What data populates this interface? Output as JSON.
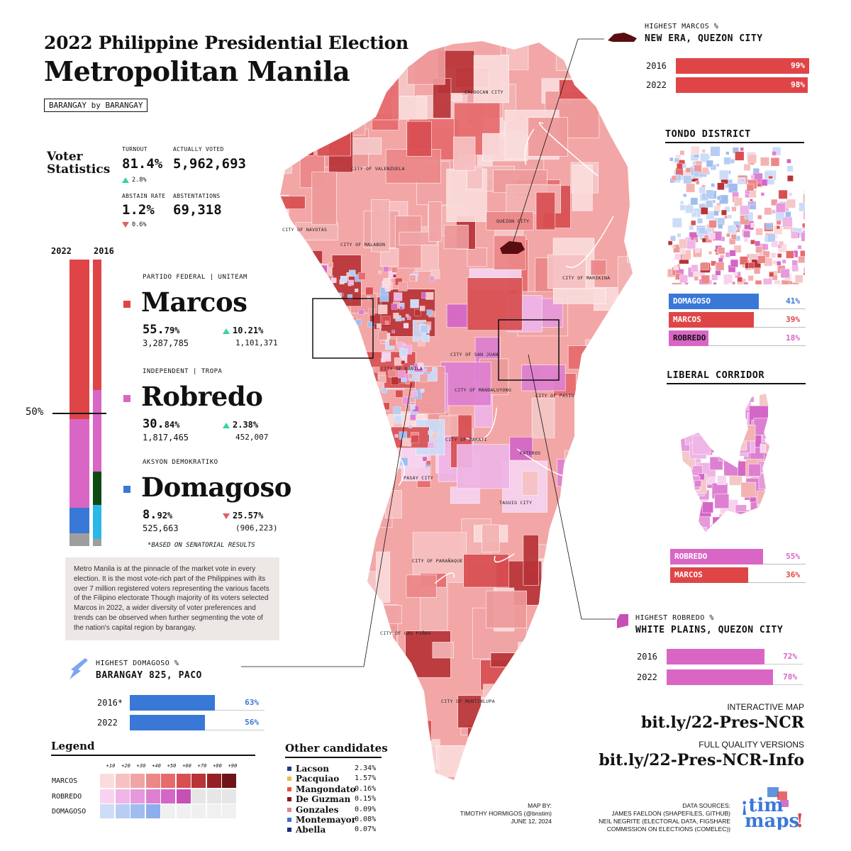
{
  "title_line1": "2022 Philippine Presidential Election",
  "title_line2": "Metropolitan Manila",
  "badge": "BARANGAY by BARANGAY",
  "voter_statistics": {
    "heading": "Voter Statistics",
    "turnout": {
      "label": "TURNOUT",
      "value": "81.4%",
      "change": "2.8%",
      "direction": "up"
    },
    "actually_voted": {
      "label": "ACTUALLY VOTED",
      "value": "5,962,693"
    },
    "abstain_rate": {
      "label": "ABSTAIN RATE",
      "value": "1.2%",
      "change": "0.6%",
      "direction": "down"
    },
    "abstentions": {
      "label": "ABSTENTATIONS",
      "value": "69,318"
    }
  },
  "stack_chart": {
    "year_2022": "2022",
    "year_2016": "2016",
    "fifty_label": "50%",
    "segments_2022": [
      {
        "name": "Marcos",
        "share": 55.79,
        "color": "#df4547"
      },
      {
        "name": "Robredo",
        "share": 30.84,
        "color": "#d966c5"
      },
      {
        "name": "Domagoso",
        "share": 8.92,
        "color": "#3a78d8"
      },
      {
        "name": "Others",
        "share": 4.45,
        "color": "#9e9e9e"
      }
    ],
    "segments_2016": [
      {
        "name": "Marcos",
        "share": 45.58,
        "color": "#df4547"
      },
      {
        "name": "Robredo",
        "share": 28.46,
        "color": "#d966c5"
      },
      {
        "name": "Other 1",
        "share": 11.5,
        "color": "#0d4a14"
      },
      {
        "name": "Other 2",
        "share": 12.0,
        "color": "#2bb8e8"
      },
      {
        "name": "Others",
        "share": 2.46,
        "color": "#9e9e9e"
      }
    ]
  },
  "candidates": [
    {
      "party": "PARTIDO FEDERAL | UNITEAM",
      "name": "Marcos",
      "color": "#df4547",
      "pct_main": "55.",
      "pct_dec": "79%",
      "votes": "3,287,785",
      "change": "10.21%",
      "change_votes": "1,101,371",
      "direction": "up"
    },
    {
      "party": "INDEPENDENT | TROPA",
      "name": "Robredo",
      "color": "#d966c5",
      "pct_main": "30.",
      "pct_dec": "84%",
      "votes": "1,817,465",
      "change": "2.38%",
      "change_votes": "452,007",
      "direction": "up"
    },
    {
      "party": "AKSYON DEMOKRATIKO",
      "name": "Domagoso",
      "color": "#3a78d8",
      "pct_main": "8.",
      "pct_dec": "92%",
      "votes": "525,663",
      "change": "25.57%",
      "change_votes": "(906,223)",
      "direction": "down"
    }
  ],
  "senatorial_note": "*BASED ON SENATORIAL RESULTS",
  "description": "Metro Manila is at the pinnacle of the market vote in every election. It is the most vote-rich part of the Philippines with its over 7 million registered voters representing the various facets of the Filipino electorate Though majority of its voters selected Marcos in 2022, a wider diversity of voter preferences and trends can be observed when further segmenting the vote of the nation's capital region by barangay.",
  "highest_domagoso": {
    "small": "HIGHEST DOMAGOSO %",
    "big": "BARANGAY 825, PACO",
    "bars": [
      {
        "year": "2016*",
        "value": 63,
        "label": "63%"
      },
      {
        "year": "2022",
        "value": 56,
        "label": "56%"
      }
    ],
    "color": "#3a78d8"
  },
  "highest_marcos": {
    "small": "HIGHEST MARCOS %",
    "big": "NEW ERA, QUEZON CITY",
    "bars": [
      {
        "year": "2016",
        "value": 99,
        "label": "99%"
      },
      {
        "year": "2022",
        "value": 98,
        "label": "98%"
      }
    ],
    "color": "#df4547"
  },
  "tondo": {
    "title": "TONDO DISTRICT",
    "bars": [
      {
        "name": "DOMAGOSO",
        "value": 41,
        "label": "41%",
        "color": "#3a78d8",
        "label_color": "#3a78d8"
      },
      {
        "name": "MARCOS",
        "value": 39,
        "label": "39%",
        "color": "#df4547",
        "label_color": "#df4547"
      },
      {
        "name": "ROBREDO",
        "value": 18,
        "label": "18%",
        "color": "#d966c5",
        "label_color": "#d966c5"
      }
    ]
  },
  "liberal": {
    "title": "LIBERAL CORRIDOR",
    "bars": [
      {
        "name": "ROBREDO",
        "value": 55,
        "label": "55%",
        "color": "#d966c5",
        "label_color": "#d966c5"
      },
      {
        "name": "MARCOS",
        "value": 36,
        "label": "36%",
        "color": "#df4547",
        "label_color": "#df4547"
      }
    ]
  },
  "highest_robredo": {
    "small": "HIGHEST ROBREDO %",
    "big": "WHITE PLAINS, QUEZON CITY",
    "bars": [
      {
        "year": "2016",
        "value": 72,
        "label": "72%"
      },
      {
        "year": "2022",
        "value": 78,
        "label": "78%"
      }
    ],
    "color": "#d966c5"
  },
  "links": {
    "interactive_label": "INTERACTIVE MAP",
    "interactive_url": "bit.ly/22-Pres-NCR",
    "full_label": "FULL QUALITY VERSIONS",
    "full_url": "bit.ly/22-Pres-NCR-Info"
  },
  "legend": {
    "title": "Legend",
    "steps": [
      "+10",
      "+20",
      "+30",
      "+40",
      "+50",
      "+60",
      "+70",
      "+80",
      "+90"
    ],
    "rows": [
      {
        "name": "MARCOS",
        "colors": [
          "#fbdcdc",
          "#f7c1c2",
          "#f1a4a5",
          "#ec8788",
          "#e66b6d",
          "#d84f52",
          "#b83437",
          "#962226",
          "#6e1316"
        ]
      },
      {
        "name": "ROBREDO",
        "colors": [
          "#f7d3f0",
          "#efb5e6",
          "#e699db",
          "#de80d1",
          "#d466c6",
          "#c650b6",
          "#e6e6e6",
          "#e6e6e6",
          "#e6e6e6"
        ]
      },
      {
        "name": "DOMAGOSO",
        "colors": [
          "#cdddf8",
          "#b7cdf4",
          "#a1bdf0",
          "#8daeec",
          "#f0f0f0",
          "#f0f0f0",
          "#f0f0f0",
          "#f0f0f0",
          "#f0f0f0"
        ]
      }
    ]
  },
  "other_candidates": {
    "title": "Other candidates",
    "items": [
      {
        "name": "Lacson",
        "value": "2.34%",
        "color": "#1d3b8a"
      },
      {
        "name": "Pacquiao",
        "value": "1.57%",
        "color": "#f2b84b"
      },
      {
        "name": "Mangondato",
        "value": "0.16%",
        "color": "#e9543c"
      },
      {
        "name": "De Guzman",
        "value": "0.15%",
        "color": "#8a1a1f"
      },
      {
        "name": "Gonzales",
        "value": "0.09%",
        "color": "#d98b8b"
      },
      {
        "name": "Montemayor",
        "value": "0.08%",
        "color": "#3f6fd0"
      },
      {
        "name": "Abella",
        "value": "0.07%",
        "color": "#1a2f7a"
      }
    ]
  },
  "credits": {
    "map_by_label": "MAP BY:",
    "author": "TIMOTHY HORMIGOS (@bnstim)",
    "date": "JUNE 12, 2024",
    "sources_label": "DATA SOURCES:",
    "source1": "JAMES FAELDON (SHAPEFILES, GITHUB)",
    "source2": "NEIL NEGRITE (ELECTORAL DATA, FIGSHARE",
    "source3": "COMMISSION ON ELECTIONS (COMELEC))"
  },
  "logo_text": "¡tim maps!",
  "map_labels": [
    "CALOOCAN CITY",
    "CITY OF VALENZUELA",
    "QUEZON CITY",
    "CITY OF NAVOTAS",
    "CITY OF MALABON",
    "CITY OF MARIKINA",
    "CITY OF SAN JUAN",
    "CITY OF MANILA",
    "CITY OF MANDALUYONG",
    "CITY OF PASIG",
    "CITY OF MAKATI",
    "PATEROS",
    "PASAY CITY",
    "TAGUIG CITY",
    "CITY OF PARAÑAQUE",
    "CITY OF LAS PIÑAS",
    "CITY OF MUNTINLUPA"
  ]
}
